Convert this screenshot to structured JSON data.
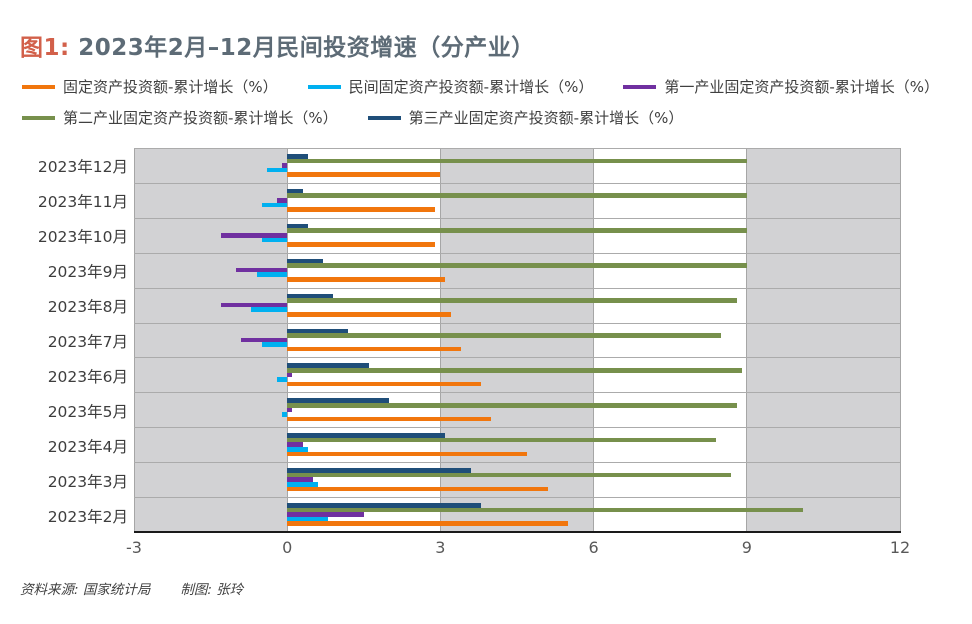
{
  "title": {
    "prefix": "图1:",
    "text": " 2023年2月–12月民间投资增速（分产业）"
  },
  "chart_data": {
    "type": "bar",
    "orientation": "horizontal",
    "title": "图1: 2023年2月–12月民间投资增速（分产业）",
    "categories": [
      "2023年12月",
      "2023年11月",
      "2023年10月",
      "2023年9月",
      "2023年8月",
      "2023年7月",
      "2023年6月",
      "2023年5月",
      "2023年4月",
      "2023年3月",
      "2023年2月"
    ],
    "series": [
      {
        "name": "固定资产投资额-累计增长（%）",
        "color": "#f1760d",
        "values": [
          3.0,
          2.9,
          2.9,
          3.1,
          3.2,
          3.4,
          3.8,
          4.0,
          4.7,
          5.1,
          5.5
        ]
      },
      {
        "name": "民间固定资产投资额-累计增长（%）",
        "color": "#00b0f0",
        "values": [
          -0.4,
          -0.5,
          -0.5,
          -0.6,
          -0.7,
          -0.5,
          -0.2,
          -0.1,
          0.4,
          0.6,
          0.8
        ]
      },
      {
        "name": "第一产业固定资产投资额-累计增长（%）",
        "color": "#7030a0",
        "values": [
          -0.1,
          -0.2,
          -1.3,
          -1.0,
          -1.3,
          -0.9,
          0.1,
          0.1,
          0.3,
          0.5,
          1.5
        ]
      },
      {
        "name": "第二产业固定资产投资额-累计增长（%）",
        "color": "#77904c",
        "values": [
          9.0,
          9.0,
          9.0,
          9.0,
          8.8,
          8.5,
          8.9,
          8.8,
          8.4,
          8.7,
          10.1
        ]
      },
      {
        "name": "第三产业固定资产投资额-累计增长（%）",
        "color": "#1f4e79",
        "values": [
          0.4,
          0.3,
          0.4,
          0.7,
          0.9,
          1.2,
          1.6,
          2.0,
          3.1,
          3.6,
          3.8
        ]
      }
    ],
    "xlim": [
      -3,
      12
    ],
    "x_ticks": [
      "-3",
      "0",
      "3",
      "6",
      "9",
      "12"
    ],
    "xlabel": "",
    "ylabel": "",
    "legend_position": "top",
    "band_colors": {
      "shaded": "#d2d2d4",
      "unshaded": "#ffffff"
    },
    "unit": "%"
  },
  "footer": {
    "source": "资料来源: 国家统计局",
    "credit": "制图: 张玲"
  }
}
